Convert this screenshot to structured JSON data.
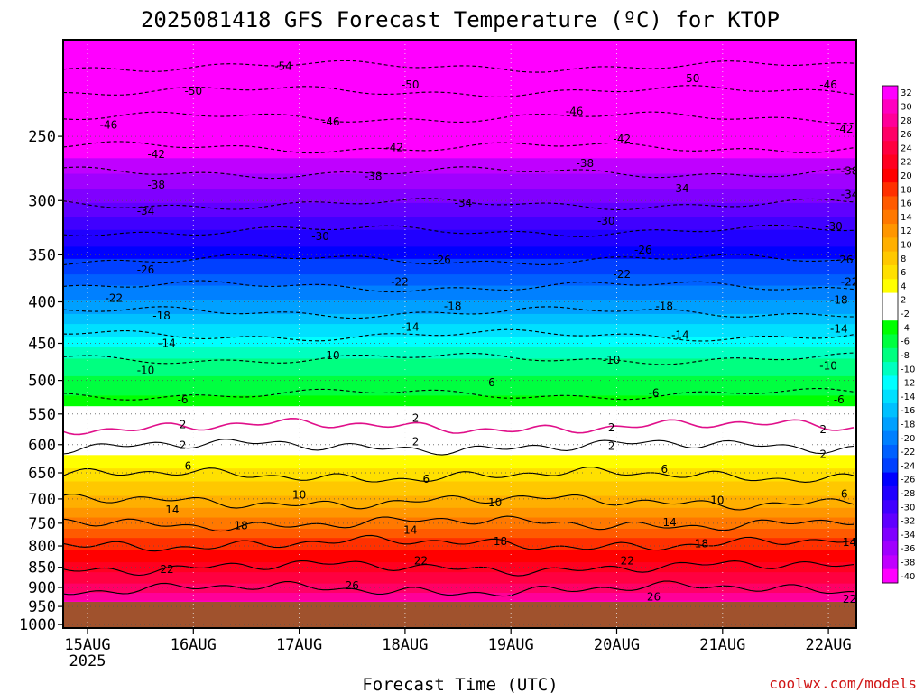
{
  "chart_data": {
    "type": "heatmap",
    "title": "2025081418 GFS Forecast Temperature (ºC) for KTOP",
    "xlabel": "Forecast Time (UTC)",
    "ylabel": "",
    "x_tick_labels": [
      "15AUG",
      "16AUG",
      "17AUG",
      "18AUG",
      "19AUG",
      "20AUG",
      "21AUG",
      "22AUG"
    ],
    "x_tick_sublabel": "2025",
    "y_tick_labels": [
      "250",
      "300",
      "350",
      "400",
      "450",
      "500",
      "550",
      "600",
      "650",
      "700",
      "750",
      "800",
      "850",
      "900",
      "950",
      "1000"
    ],
    "y_axis": "pressure (hPa), log scale, inverted",
    "ylim": [
      1010,
      190
    ],
    "surface_level_hpa": 975,
    "grid": "dotted",
    "colorbar": {
      "ticks": [
        "32",
        "30",
        "28",
        "26",
        "24",
        "22",
        "20",
        "18",
        "16",
        "14",
        "12",
        "10",
        "8",
        "6",
        "4",
        "2",
        "-2",
        "-4",
        "-6",
        "-8",
        "-10",
        "-12",
        "-14",
        "-16",
        "-18",
        "-20",
        "-22",
        "-24",
        "-26",
        "-28",
        "-30",
        "-32",
        "-34",
        "-36",
        "-38",
        "-40"
      ],
      "placement": "right"
    },
    "contours": [
      {
        "value": "-54",
        "pressure": 205
      },
      {
        "value": "-50",
        "pressure": 220
      },
      {
        "value": "-46",
        "pressure": 237
      },
      {
        "value": "-42",
        "pressure": 258
      },
      {
        "value": "-38",
        "pressure": 277
      },
      {
        "value": "-34",
        "pressure": 303
      },
      {
        "value": "-30",
        "pressure": 327
      },
      {
        "value": "-26",
        "pressure": 355
      },
      {
        "value": "-22",
        "pressure": 383
      },
      {
        "value": "-18",
        "pressure": 412
      },
      {
        "value": "-14",
        "pressure": 440
      },
      {
        "value": "-10",
        "pressure": 470
      },
      {
        "value": "-6",
        "pressure": 520
      },
      {
        "value": "2",
        "pressure": 570
      },
      {
        "value": "2",
        "pressure": 603
      },
      {
        "value": "6",
        "pressure": 655
      },
      {
        "value": "10",
        "pressure": 705
      },
      {
        "value": "14",
        "pressure": 750
      },
      {
        "value": "18",
        "pressure": 795
      },
      {
        "value": "22",
        "pressure": 850
      },
      {
        "value": "26",
        "pressure": 905
      }
    ],
    "contour_labels": [
      {
        "text": "-54",
        "day": 1.85,
        "p": 205
      },
      {
        "text": "-50",
        "day": 1.0,
        "p": 220
      },
      {
        "text": "-50",
        "day": 3.05,
        "p": 216
      },
      {
        "text": "-50",
        "day": 5.7,
        "p": 212
      },
      {
        "text": "-46",
        "day": 0.2,
        "p": 242
      },
      {
        "text": "-46",
        "day": 2.3,
        "p": 240
      },
      {
        "text": "-46",
        "day": 4.6,
        "p": 233
      },
      {
        "text": "-46",
        "day": 7.0,
        "p": 216
      },
      {
        "text": "-42",
        "day": 0.65,
        "p": 263
      },
      {
        "text": "-42",
        "day": 2.9,
        "p": 258
      },
      {
        "text": "-42",
        "day": 5.05,
        "p": 252
      },
      {
        "text": "-42",
        "day": 7.15,
        "p": 245
      },
      {
        "text": "-38",
        "day": 0.65,
        "p": 287
      },
      {
        "text": "-38",
        "day": 2.7,
        "p": 280
      },
      {
        "text": "-38",
        "day": 4.7,
        "p": 270
      },
      {
        "text": "-38",
        "day": 7.2,
        "p": 276
      },
      {
        "text": "-34",
        "day": 0.55,
        "p": 309
      },
      {
        "text": "-34",
        "day": 3.55,
        "p": 302
      },
      {
        "text": "-34",
        "day": 5.6,
        "p": 290
      },
      {
        "text": "-34",
        "day": 7.2,
        "p": 295
      },
      {
        "text": "-30",
        "day": 2.2,
        "p": 332
      },
      {
        "text": "-30",
        "day": 4.9,
        "p": 318
      },
      {
        "text": "-30",
        "day": 7.05,
        "p": 323
      },
      {
        "text": "-26",
        "day": 0.55,
        "p": 365
      },
      {
        "text": "-26",
        "day": 3.35,
        "p": 355
      },
      {
        "text": "-26",
        "day": 5.25,
        "p": 345
      },
      {
        "text": "-26",
        "day": 7.15,
        "p": 355
      },
      {
        "text": "-22",
        "day": 0.25,
        "p": 396
      },
      {
        "text": "-22",
        "day": 2.95,
        "p": 378
      },
      {
        "text": "-22",
        "day": 5.05,
        "p": 370
      },
      {
        "text": "-22",
        "day": 7.2,
        "p": 378
      },
      {
        "text": "-18",
        "day": 0.7,
        "p": 416
      },
      {
        "text": "-18",
        "day": 3.45,
        "p": 405
      },
      {
        "text": "-18",
        "day": 5.45,
        "p": 405
      },
      {
        "text": "-18",
        "day": 7.1,
        "p": 398
      },
      {
        "text": "-14",
        "day": 0.75,
        "p": 450
      },
      {
        "text": "-14",
        "day": 3.05,
        "p": 430
      },
      {
        "text": "-14",
        "day": 5.6,
        "p": 440
      },
      {
        "text": "-14",
        "day": 7.1,
        "p": 432
      },
      {
        "text": "-10",
        "day": 0.55,
        "p": 486
      },
      {
        "text": "-10",
        "day": 2.3,
        "p": 466
      },
      {
        "text": "-10",
        "day": 4.95,
        "p": 472
      },
      {
        "text": "-10",
        "day": 7.0,
        "p": 480
      },
      {
        "text": "-6",
        "day": 0.9,
        "p": 528
      },
      {
        "text": "-6",
        "day": 3.8,
        "p": 503
      },
      {
        "text": "-6",
        "day": 5.35,
        "p": 518
      },
      {
        "text": "-6",
        "day": 7.1,
        "p": 528
      },
      {
        "text": "2",
        "day": 0.9,
        "p": 567
      },
      {
        "text": "2",
        "day": 3.1,
        "p": 557
      },
      {
        "text": "2",
        "day": 4.95,
        "p": 572
      },
      {
        "text": "2",
        "day": 6.95,
        "p": 575
      },
      {
        "text": "2",
        "day": 0.9,
        "p": 601
      },
      {
        "text": "2",
        "day": 3.1,
        "p": 595
      },
      {
        "text": "2",
        "day": 4.95,
        "p": 603
      },
      {
        "text": "2",
        "day": 6.95,
        "p": 617
      },
      {
        "text": "6",
        "day": 0.95,
        "p": 638
      },
      {
        "text": "6",
        "day": 3.2,
        "p": 662
      },
      {
        "text": "6",
        "day": 5.45,
        "p": 643
      },
      {
        "text": "6",
        "day": 7.15,
        "p": 690
      },
      {
        "text": "10",
        "day": 2.0,
        "p": 692
      },
      {
        "text": "10",
        "day": 3.85,
        "p": 707
      },
      {
        "text": "10",
        "day": 5.95,
        "p": 703
      },
      {
        "text": "10",
        "day": 8.2,
        "p": 720
      },
      {
        "text": "14",
        "day": 0.8,
        "p": 722
      },
      {
        "text": "14",
        "day": 3.05,
        "p": 765
      },
      {
        "text": "14",
        "day": 5.5,
        "p": 748
      },
      {
        "text": "14",
        "day": 7.2,
        "p": 792
      },
      {
        "text": "18",
        "day": 1.45,
        "p": 755
      },
      {
        "text": "18",
        "day": 3.9,
        "p": 790
      },
      {
        "text": "18",
        "day": 5.8,
        "p": 795
      },
      {
        "text": "18",
        "day": 7.35,
        "p": 862
      },
      {
        "text": "22",
        "day": 0.75,
        "p": 855
      },
      {
        "text": "22",
        "day": 3.15,
        "p": 835
      },
      {
        "text": "22",
        "day": 5.1,
        "p": 835
      },
      {
        "text": "22",
        "day": 7.2,
        "p": 930
      },
      {
        "text": "26",
        "day": 2.5,
        "p": 895
      },
      {
        "text": "26",
        "day": 5.35,
        "p": 925
      }
    ]
  },
  "credit": "coolwx.com/models"
}
